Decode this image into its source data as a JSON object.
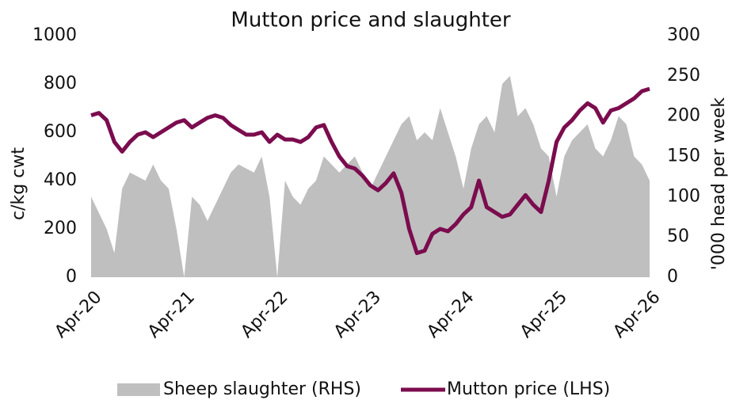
{
  "chart_data": {
    "type": "line",
    "title": "Mutton price and slaughter",
    "ylabel": "c/kg cwt",
    "y2label": "'000 head per week",
    "categories": [
      "Apr-20",
      null,
      null,
      null,
      null,
      null,
      null,
      null,
      null,
      null,
      null,
      null,
      "Apr-21",
      null,
      null,
      null,
      null,
      null,
      null,
      null,
      null,
      null,
      null,
      null,
      "Apr-22",
      null,
      null,
      null,
      null,
      null,
      null,
      null,
      null,
      null,
      null,
      null,
      "Apr-23",
      null,
      null,
      null,
      null,
      null,
      null,
      null,
      null,
      null,
      null,
      null,
      "Apr-24",
      null,
      null,
      null,
      null,
      null,
      null,
      null,
      null,
      null,
      null,
      null,
      "Apr-25",
      null,
      null,
      null,
      null,
      null,
      null,
      null,
      null,
      null,
      null,
      null,
      "Apr-26"
    ],
    "series": [
      {
        "name": "Sheep slaughter (RHS)",
        "type": "area",
        "axis": "y2",
        "color": "#bfbfbf",
        "values": [
          100,
          80,
          60,
          30,
          110,
          130,
          125,
          120,
          140,
          120,
          110,
          60,
          0,
          100,
          90,
          70,
          90,
          110,
          130,
          140,
          135,
          130,
          150,
          100,
          0,
          120,
          100,
          90,
          110,
          120,
          150,
          140,
          130,
          140,
          150,
          130,
          110,
          130,
          150,
          170,
          190,
          200,
          170,
          180,
          170,
          210,
          180,
          150,
          110,
          160,
          190,
          200,
          180,
          240,
          250,
          200,
          210,
          190,
          160,
          150,
          100,
          150,
          170,
          180,
          190,
          160,
          150,
          170,
          200,
          190,
          150,
          140,
          120
        ]
      },
      {
        "name": "Mutton price (LHS)",
        "type": "line",
        "color": "#7b0c4e",
        "values": [
          670,
          680,
          650,
          560,
          520,
          560,
          590,
          600,
          580,
          600,
          620,
          640,
          650,
          620,
          640,
          660,
          670,
          660,
          630,
          610,
          590,
          590,
          600,
          560,
          590,
          570,
          570,
          560,
          580,
          620,
          630,
          560,
          500,
          460,
          450,
          420,
          380,
          360,
          390,
          430,
          350,
          200,
          100,
          110,
          180,
          200,
          190,
          220,
          260,
          290,
          400,
          290,
          270,
          250,
          260,
          300,
          340,
          300,
          270,
          400,
          560,
          620,
          650,
          690,
          720,
          700,
          640,
          690,
          700,
          720,
          740,
          770,
          780
        ]
      }
    ],
    "ylim": [
      0,
      1000
    ],
    "yticks": [
      0,
      200,
      400,
      600,
      800,
      1000
    ],
    "y2lim": [
      0,
      300
    ],
    "y2ticks": [
      0,
      50,
      100,
      150,
      200,
      250,
      300
    ],
    "grid": false,
    "legend": "bottom"
  }
}
